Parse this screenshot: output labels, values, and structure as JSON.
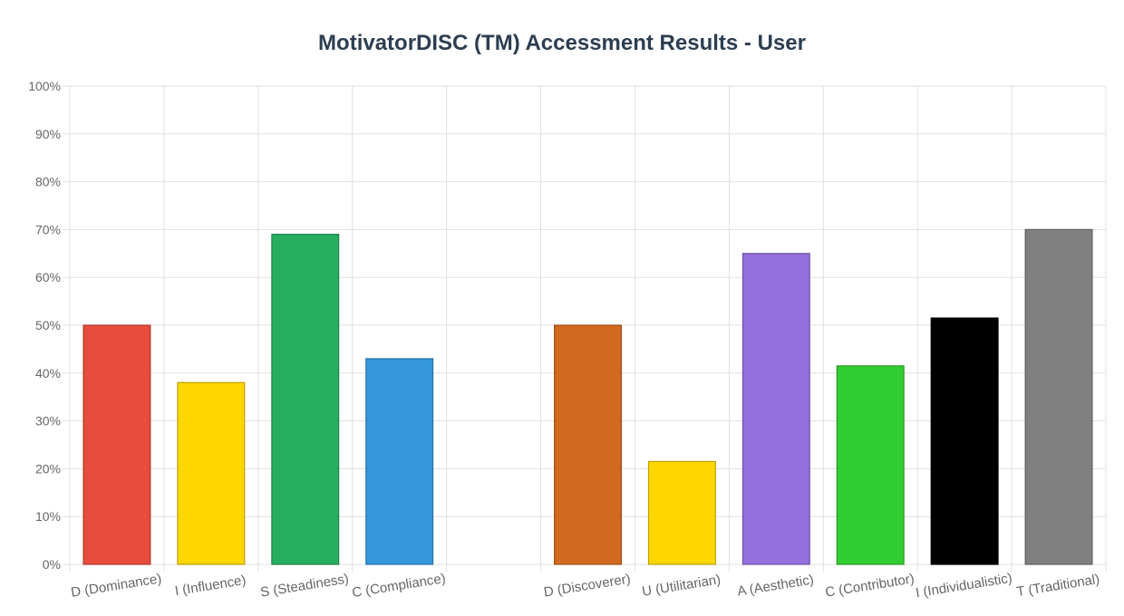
{
  "chart_data": {
    "type": "bar",
    "title": "MotivatorDISC (TM) Accessment Results - User",
    "xlabel": "",
    "ylabel": "",
    "ylim": [
      0,
      100
    ],
    "y_tick_step": 10,
    "y_tick_suffix": "%",
    "grid": true,
    "legend": "none",
    "categories": [
      "D (Dominance)",
      "I (Influence)",
      "S (Steadiness)",
      "C (Compliance)",
      "",
      "D (Discoverer)",
      "U (Utilitarian)",
      "A (Aesthetic)",
      "C (Contributor)",
      "I (Individualistic)",
      "T (Traditional)"
    ],
    "values": [
      50,
      38,
      69,
      43,
      null,
      50,
      21.5,
      65,
      41.5,
      51.5,
      70
    ],
    "colors": [
      "#e74c3c",
      "#ffd700",
      "#27ae60",
      "#3498db",
      null,
      "#d2691e",
      "#ffd700",
      "#9370db",
      "#32cd32",
      "#000000",
      "#808080"
    ]
  }
}
